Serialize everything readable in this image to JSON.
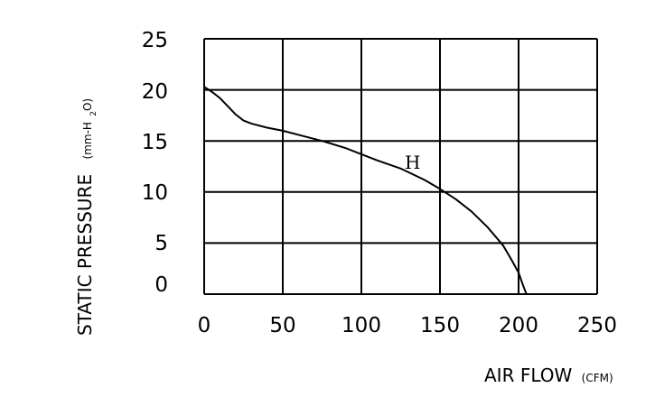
{
  "chart_data": {
    "type": "line",
    "xlabel": "AIR FLOW",
    "xunit": "(CFM)",
    "ylabel": "STATIC PRESSURE",
    "yunit": "(mm-H2O)",
    "xlim": [
      0,
      250
    ],
    "ylim": [
      0,
      25
    ],
    "xticks": [
      0,
      50,
      100,
      150,
      200,
      250
    ],
    "yticks": [
      0,
      5,
      10,
      15,
      20,
      25
    ],
    "grid": true,
    "series": [
      {
        "name": "H",
        "x": [
          0,
          5,
          10,
          15,
          20,
          25,
          30,
          40,
          50,
          60,
          75,
          90,
          100,
          110,
          125,
          140,
          150,
          160,
          170,
          180,
          190,
          195,
          200,
          203,
          205
        ],
        "y": [
          20.3,
          19.8,
          19.2,
          18.4,
          17.6,
          17.0,
          16.7,
          16.3,
          16.0,
          15.6,
          15.0,
          14.3,
          13.7,
          13.1,
          12.3,
          11.2,
          10.3,
          9.3,
          8.1,
          6.6,
          4.8,
          3.5,
          2.1,
          0.8,
          0.0
        ]
      }
    ]
  }
}
